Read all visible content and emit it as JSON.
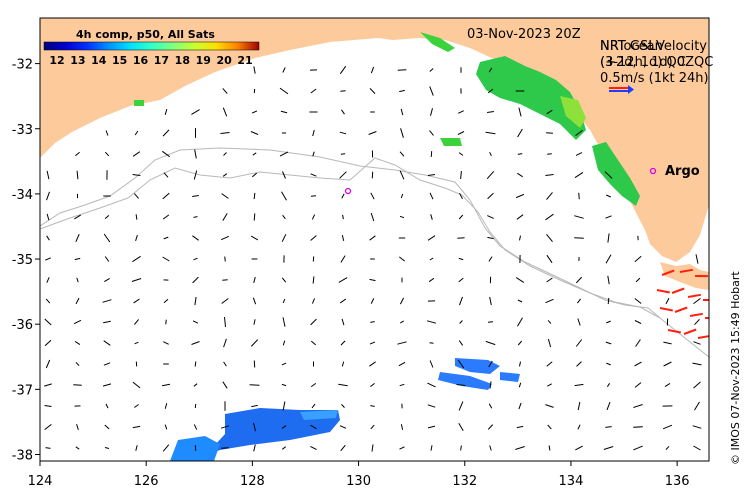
{
  "map": {
    "extent": {
      "lon_min": 124,
      "lon_max": 136.6,
      "lat_min": -38.1,
      "lat_max": -31.3
    },
    "date_label": "03-Nov-2023 20Z",
    "colorbar": {
      "title": "4h comp, p50, All Sats",
      "ticks": [
        "12",
        "13",
        "14",
        "15",
        "16",
        "17",
        "18",
        "19",
        "20",
        "21"
      ],
      "colors": [
        "#00007f",
        "#0000d0",
        "#0030ff",
        "#0090ff",
        "#00e0ff",
        "#30ffc8",
        "#80ff80",
        "#c8ff30",
        "#ffe000",
        "#ff8000",
        "#ff2000",
        "#a00000"
      ]
    },
    "legend": {
      "title_a": "NRT GSL",
      "title_b": "Velocity",
      "overlap_a": "NRTocean",
      "line2": "(+2d, 1d) QC",
      "line2_overlap": "(3-12h, 1d) 0ZQC",
      "scale": "0.5m/s (1kt 24h)",
      "arrow_color_blue": "#1f3cff",
      "arrow_color_red": "#ff2010"
    },
    "argo": {
      "label": "Argo",
      "color": "#e000e0",
      "floats": [
        {
          "lon": 135.6,
          "lat": -33.6
        },
        {
          "lon": 129.8,
          "lat": -33.9
        }
      ]
    },
    "x_ticks": [
      "124",
      "126",
      "128",
      "130",
      "132",
      "134",
      "136"
    ],
    "x_tick_values": [
      124,
      126,
      128,
      130,
      132,
      134,
      136
    ],
    "y_ticks": [
      "-32",
      "-33",
      "-34",
      "-35",
      "-36",
      "-37",
      "-38"
    ],
    "y_tick_values": [
      -32,
      -33,
      -34,
      -35,
      -36,
      -37,
      -38
    ],
    "land_color": "#fdca9c",
    "credit": "© IMOS 07-Nov-2023 15:49 Hobart"
  }
}
